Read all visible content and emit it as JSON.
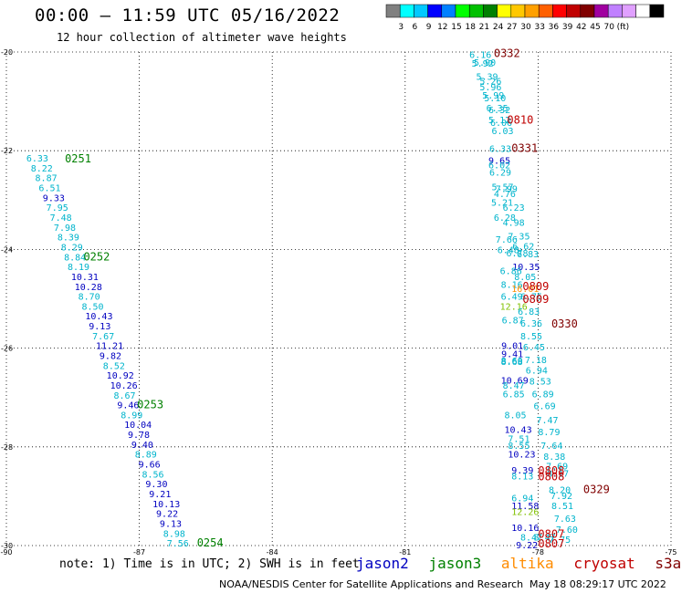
{
  "header": {
    "title": "00:00 – 11:59 UTC 05/16/2022",
    "subtitle": "12 hour collection of altimeter wave heights"
  },
  "colorbar": {
    "colors": [
      "#808080",
      "#00ffff",
      "#00c8ff",
      "#0000ff",
      "#0080ff",
      "#00ff00",
      "#00c000",
      "#008000",
      "#ffff00",
      "#ffc800",
      "#ffa000",
      "#ff6000",
      "#ff0000",
      "#c00000",
      "#800000",
      "#a000a0",
      "#c080ff",
      "#e0a0ff",
      "#ffffff",
      "#000000"
    ],
    "labels": [
      "3",
      "6",
      "9",
      "12",
      "15",
      "18",
      "21",
      "24",
      "27",
      "30",
      "33",
      "36",
      "39",
      "42",
      "45",
      "70",
      "(ft)"
    ]
  },
  "chart_data": {
    "type": "scatter",
    "title": "00:00 – 11:59 UTC 05/16/2022",
    "subtitle": "12 hour collection of altimeter wave heights",
    "xlim": [
      -90,
      -75
    ],
    "ylim": [
      -30,
      -20
    ],
    "xticks": [
      -90,
      -87,
      -84,
      -81,
      -78,
      -75
    ],
    "yticks": [
      -20,
      -22,
      -24,
      -26,
      -28,
      -30
    ],
    "xtick_labels": [
      "-90",
      "-87",
      "-84",
      "-81",
      "-78",
      "-75"
    ],
    "ytick_labels": [
      "-20",
      "-22",
      "-24",
      "-26",
      "-28",
      "-30"
    ],
    "grid": true,
    "palette": {
      "jason2": "#0000c0",
      "jason3": "#008000",
      "altika": "#ff8c00",
      "cryosat": "#c00000",
      "s3a": "#800000",
      "cyan": "#00b4cc",
      "lightgreen": "#80c000"
    },
    "series": [
      {
        "name": "jason3",
        "points": [
          [
            -89.55,
            -22.22,
            "6.33",
            "cyan"
          ],
          [
            -89.45,
            -22.42,
            "8.22",
            "cyan"
          ],
          [
            -89.35,
            -22.62,
            "8.87",
            "cyan"
          ],
          [
            -89.27,
            -22.82,
            "6.51",
            "cyan"
          ],
          [
            -89.18,
            -23.02,
            "9.33",
            "jason2"
          ],
          [
            -89.1,
            -23.22,
            "7.95",
            "cyan"
          ],
          [
            -89.02,
            -23.42,
            "7.48",
            "cyan"
          ],
          [
            -88.93,
            -23.62,
            "7.98",
            "cyan"
          ],
          [
            -88.85,
            -23.82,
            "8.39",
            "cyan"
          ],
          [
            -88.77,
            -24.02,
            "8.29",
            "cyan"
          ],
          [
            -88.7,
            -24.22,
            "8.84",
            "cyan"
          ],
          [
            -88.62,
            -24.42,
            "8.19",
            "cyan"
          ],
          [
            -88.54,
            -24.62,
            "10.31",
            "jason2"
          ],
          [
            -88.46,
            -24.82,
            "10.28",
            "jason2"
          ],
          [
            -88.38,
            -25.02,
            "8.70",
            "cyan"
          ],
          [
            -88.3,
            -25.22,
            "8.50",
            "cyan"
          ],
          [
            -88.22,
            -25.42,
            "10.43",
            "jason2"
          ],
          [
            -88.14,
            -25.62,
            "9.13",
            "jason2"
          ],
          [
            -88.06,
            -25.82,
            "7.67",
            "cyan"
          ],
          [
            -87.98,
            -26.02,
            "11.21",
            "jason2"
          ],
          [
            -87.9,
            -26.22,
            "9.82",
            "jason2"
          ],
          [
            -87.82,
            -26.42,
            "8.52",
            "cyan"
          ],
          [
            -87.74,
            -26.62,
            "10.92",
            "jason2"
          ],
          [
            -87.66,
            -26.82,
            "10.26",
            "jason2"
          ],
          [
            -87.58,
            -27.02,
            "8.67",
            "cyan"
          ],
          [
            -87.5,
            -27.22,
            "9.46",
            "jason2"
          ],
          [
            -87.42,
            -27.42,
            "8.99",
            "cyan"
          ],
          [
            -87.34,
            -27.62,
            "10.04",
            "jason2"
          ],
          [
            -87.26,
            -27.82,
            "9.78",
            "jason2"
          ],
          [
            -87.18,
            -28.02,
            "9.40",
            "jason2"
          ],
          [
            -87.1,
            -28.22,
            "8.89",
            "cyan"
          ],
          [
            -87.02,
            -28.42,
            "9.66",
            "jason2"
          ],
          [
            -86.94,
            -28.62,
            "8.56",
            "cyan"
          ],
          [
            -86.86,
            -28.82,
            "9.30",
            "jason2"
          ],
          [
            -86.78,
            -29.02,
            "9.21",
            "jason2"
          ],
          [
            -86.7,
            -29.22,
            "10.13",
            "jason2"
          ],
          [
            -86.62,
            -29.42,
            "9.22",
            "jason2"
          ],
          [
            -86.54,
            -29.62,
            "9.13",
            "jason2"
          ],
          [
            -86.46,
            -29.82,
            "8.98",
            "cyan"
          ],
          [
            -86.38,
            -30.02,
            "7.56",
            "cyan"
          ]
        ],
        "times": [
          [
            -88.68,
            -22.24,
            "0251"
          ],
          [
            -88.26,
            -24.22,
            "0252"
          ],
          [
            -87.05,
            -27.22,
            "0253"
          ],
          [
            -85.7,
            -30.02,
            "0254"
          ]
        ]
      },
      {
        "name": "cryosat",
        "points": [
          [
            -79.55,
            -20.12,
            "6.16",
            "cyan"
          ],
          [
            -79.45,
            -20.28,
            "5.90",
            "cyan"
          ],
          [
            -79.5,
            -20.3,
            "5.92",
            "cyan"
          ],
          [
            -79.4,
            -20.56,
            "5.39",
            "cyan"
          ],
          [
            -79.32,
            -20.66,
            "5.26",
            "cyan"
          ],
          [
            -79.32,
            -20.78,
            "5.96",
            "cyan"
          ],
          [
            -79.26,
            -20.94,
            "5.99",
            "cyan"
          ],
          [
            -79.22,
            -21.0,
            "5.10",
            "cyan"
          ],
          [
            -79.17,
            -21.2,
            "6.35",
            "cyan"
          ],
          [
            -79.12,
            -21.24,
            "6.32",
            "cyan"
          ],
          [
            -79.12,
            -21.44,
            "5.12",
            "cyan"
          ],
          [
            -79.08,
            -21.5,
            "6.06",
            "cyan"
          ],
          [
            -79.05,
            -21.66,
            "6.03",
            "cyan"
          ],
          [
            -79.1,
            -22.02,
            "6.33",
            "cyan"
          ],
          [
            -79.12,
            -22.26,
            "9.65",
            "jason2"
          ],
          [
            -79.12,
            -22.36,
            "6.02",
            "cyan"
          ],
          [
            -79.1,
            -22.5,
            "6.29",
            "cyan"
          ],
          [
            -79.05,
            -22.8,
            "5.57",
            "cyan"
          ],
          [
            -78.96,
            -22.84,
            "7.99",
            "cyan"
          ],
          [
            -79.0,
            -22.94,
            "4.76",
            "cyan"
          ],
          [
            -79.06,
            -23.11,
            "5.21",
            "cyan"
          ],
          [
            -78.8,
            -23.22,
            "6.23",
            "cyan"
          ],
          [
            -79.0,
            -23.42,
            "6.28",
            "cyan"
          ],
          [
            -78.8,
            -23.52,
            "4.98",
            "cyan"
          ],
          [
            -78.68,
            -23.8,
            "7.35",
            "cyan"
          ],
          [
            -78.96,
            -23.86,
            "7.66",
            "cyan"
          ],
          [
            -78.58,
            -24.0,
            "6.62",
            "cyan"
          ],
          [
            -78.92,
            -24.08,
            "6.48",
            "cyan"
          ],
          [
            -78.72,
            -24.14,
            "6.78",
            "cyan"
          ],
          [
            -78.48,
            -24.16,
            "6.83",
            "cyan"
          ],
          [
            -78.58,
            -24.42,
            "10.35",
            "jason2"
          ],
          [
            -78.86,
            -24.5,
            "6.86",
            "cyan"
          ],
          [
            -78.54,
            -24.62,
            "8.05",
            "cyan"
          ],
          [
            -78.84,
            -24.78,
            "8.16",
            "cyan"
          ],
          [
            -78.6,
            -24.86,
            "16.01",
            "altika"
          ],
          [
            -78.4,
            -25.02,
            "6.75",
            "cyan"
          ],
          [
            -78.84,
            -25.02,
            "6.49",
            "cyan"
          ],
          [
            -78.86,
            -25.22,
            "12.16",
            "lightgreen"
          ],
          [
            -78.46,
            -25.32,
            "6.83",
            "cyan"
          ],
          [
            -78.82,
            -25.5,
            "6.87",
            "cyan"
          ],
          [
            -78.4,
            -25.56,
            "6.36",
            "cyan"
          ],
          [
            -78.4,
            -25.82,
            "8.55",
            "cyan"
          ],
          [
            -78.83,
            -26.02,
            "9.01",
            "jason2"
          ],
          [
            -78.34,
            -26.04,
            "6.45",
            "cyan"
          ],
          [
            -78.83,
            -26.18,
            "9.41",
            "jason2"
          ],
          [
            -78.84,
            -26.32,
            "8.60",
            "cyan"
          ],
          [
            -78.84,
            -26.34,
            "8.68",
            "cyan"
          ],
          [
            -78.3,
            -26.3,
            "7.18",
            "cyan"
          ],
          [
            -78.28,
            -26.52,
            "6.94",
            "cyan"
          ],
          [
            -78.84,
            -26.72,
            "10.69",
            "jason2"
          ],
          [
            -78.8,
            -26.82,
            "8.47",
            "cyan"
          ],
          [
            -78.2,
            -26.74,
            "8.53",
            "cyan"
          ],
          [
            -78.8,
            -27.0,
            "6.85",
            "cyan"
          ],
          [
            -78.14,
            -27.0,
            "6.89",
            "cyan"
          ],
          [
            -78.1,
            -27.24,
            "6.69",
            "cyan"
          ],
          [
            -78.76,
            -27.42,
            "8.05",
            "cyan"
          ],
          [
            -78.04,
            -27.52,
            "7.47",
            "cyan"
          ],
          [
            -78.76,
            -27.72,
            "10.43",
            "jason2"
          ],
          [
            -78.0,
            -27.76,
            "8.79",
            "cyan"
          ],
          [
            -78.68,
            -27.9,
            "7.51",
            "cyan"
          ],
          [
            -78.68,
            -28.04,
            "8.55",
            "cyan"
          ],
          [
            -77.94,
            -28.04,
            "7.64",
            "cyan"
          ],
          [
            -78.68,
            -28.22,
            "10.23",
            "jason2"
          ],
          [
            -77.88,
            -28.26,
            "8.38",
            "cyan"
          ],
          [
            -77.82,
            -28.46,
            "7.69",
            "cyan"
          ],
          [
            -78.6,
            -28.54,
            "9.39",
            "jason2"
          ],
          [
            -78.6,
            -28.66,
            "8.13",
            "cyan"
          ],
          [
            -77.8,
            -28.6,
            "8.17",
            "cyan"
          ],
          [
            -77.76,
            -28.94,
            "8.20",
            "cyan"
          ],
          [
            -77.72,
            -29.06,
            "7.92",
            "cyan"
          ],
          [
            -78.6,
            -29.1,
            "6.94",
            "cyan"
          ],
          [
            -78.6,
            -29.26,
            "11.58",
            "jason2"
          ],
          [
            -78.6,
            -29.38,
            "12.26",
            "lightgreen"
          ],
          [
            -77.7,
            -29.26,
            "8.51",
            "cyan"
          ],
          [
            -77.64,
            -29.52,
            "7.63",
            "cyan"
          ],
          [
            -78.6,
            -29.7,
            "10.16",
            "jason2"
          ],
          [
            -77.6,
            -29.74,
            "7.60",
            "cyan"
          ],
          [
            -78.4,
            -29.9,
            "8.47",
            "cyan"
          ],
          [
            -78.1,
            -29.9,
            "8.47",
            "cyan"
          ],
          [
            -77.76,
            -29.94,
            "7.75",
            "cyan"
          ],
          [
            -78.5,
            -30.06,
            "9.22",
            "jason2"
          ]
        ],
        "times": [
          [
            -79.0,
            -20.1,
            "0332",
            "s3a"
          ],
          [
            -78.7,
            -21.45,
            "0810",
            "cryosat"
          ],
          [
            -78.6,
            -22.02,
            "0331",
            "s3a"
          ],
          [
            -78.35,
            -24.82,
            "0809",
            "cryosat"
          ],
          [
            -78.35,
            -25.08,
            "0809",
            "cryosat"
          ],
          [
            -77.7,
            -25.58,
            "0330",
            "s3a"
          ],
          [
            -78.0,
            -28.56,
            "0808",
            "cryosat"
          ],
          [
            -78.0,
            -28.68,
            "0808",
            "cryosat"
          ],
          [
            -76.98,
            -28.94,
            "0329",
            "s3a"
          ],
          [
            -78.0,
            -29.84,
            "0807",
            "cryosat"
          ],
          [
            -78.0,
            -30.04,
            "0807",
            "cryosat"
          ]
        ]
      }
    ]
  },
  "footer": {
    "note": "note: 1) Time is in UTC; 2) SWH is in feet",
    "legend": [
      {
        "name": "jason2",
        "color": "#0000c0"
      },
      {
        "name": "jason3",
        "color": "#008000"
      },
      {
        "name": "altika",
        "color": "#ff8c00"
      },
      {
        "name": "cryosat",
        "color": "#c00000"
      },
      {
        "name": "s3a",
        "color": "#800000"
      }
    ],
    "credit": "NOAA/NESDIS Center for Satellite Applications and Research",
    "timestamp": "May 18 08:29:17 UTC 2022"
  }
}
